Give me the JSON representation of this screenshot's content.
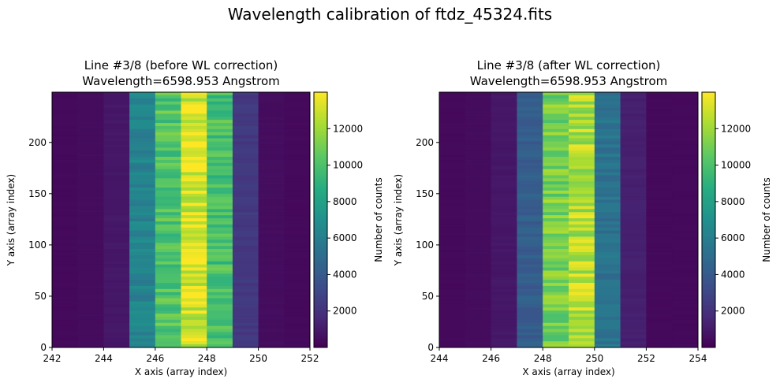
{
  "figure": {
    "suptitle": "Wavelength calibration of ftdz_45324.fits"
  },
  "colormap": "viridis",
  "chart_data": [
    {
      "type": "heatmap",
      "title": "Line #3/8 (before WL correction)",
      "subtitle": "Wavelength=6598.953 Angstrom",
      "xlabel": "X axis (array index)",
      "ylabel": "Y axis (array index)",
      "xlim": [
        242,
        252
      ],
      "ylim": [
        0,
        249
      ],
      "xticks": [
        242,
        244,
        246,
        248,
        250,
        252
      ],
      "yticks": [
        0,
        50,
        100,
        150,
        200
      ],
      "grid": false,
      "colorbar": {
        "label": "Number of counts",
        "range": [
          0,
          14000
        ],
        "ticks": [
          2000,
          4000,
          6000,
          8000,
          10000,
          12000
        ]
      },
      "columns": [
        {
          "x": 242,
          "value": 350
        },
        {
          "x": 243,
          "value": 450
        },
        {
          "x": 244,
          "value": 900
        },
        {
          "x": 245,
          "value": 6500
        },
        {
          "x": 246,
          "value": 10500
        },
        {
          "x": 247,
          "value": 13600
        },
        {
          "x": 248,
          "value": 10200
        },
        {
          "x": 249,
          "value": 2400
        },
        {
          "x": 250,
          "value": 500
        },
        {
          "x": 251,
          "value": 350
        }
      ]
    },
    {
      "type": "heatmap",
      "title": "Line #3/8 (after WL correction)",
      "subtitle": "Wavelength=6598.953 Angstrom",
      "xlabel": "X axis (array index)",
      "ylabel": "Y axis (array index)",
      "xlim": [
        244,
        254
      ],
      "ylim": [
        0,
        249
      ],
      "xticks": [
        244,
        246,
        248,
        250,
        252,
        254
      ],
      "yticks": [
        0,
        50,
        100,
        150,
        200
      ],
      "grid": false,
      "colorbar": {
        "label": "Number of counts",
        "range": [
          0,
          14000
        ],
        "ticks": [
          2000,
          4000,
          6000,
          8000,
          10000,
          12000
        ]
      },
      "columns": [
        {
          "x": 244,
          "value": 350
        },
        {
          "x": 245,
          "value": 450
        },
        {
          "x": 246,
          "value": 900
        },
        {
          "x": 247,
          "value": 4300
        },
        {
          "x": 248,
          "value": 11500
        },
        {
          "x": 249,
          "value": 12800
        },
        {
          "x": 250,
          "value": 5500
        },
        {
          "x": 251,
          "value": 1300
        },
        {
          "x": 252,
          "value": 350
        },
        {
          "x": 253,
          "value": 350
        }
      ]
    }
  ]
}
